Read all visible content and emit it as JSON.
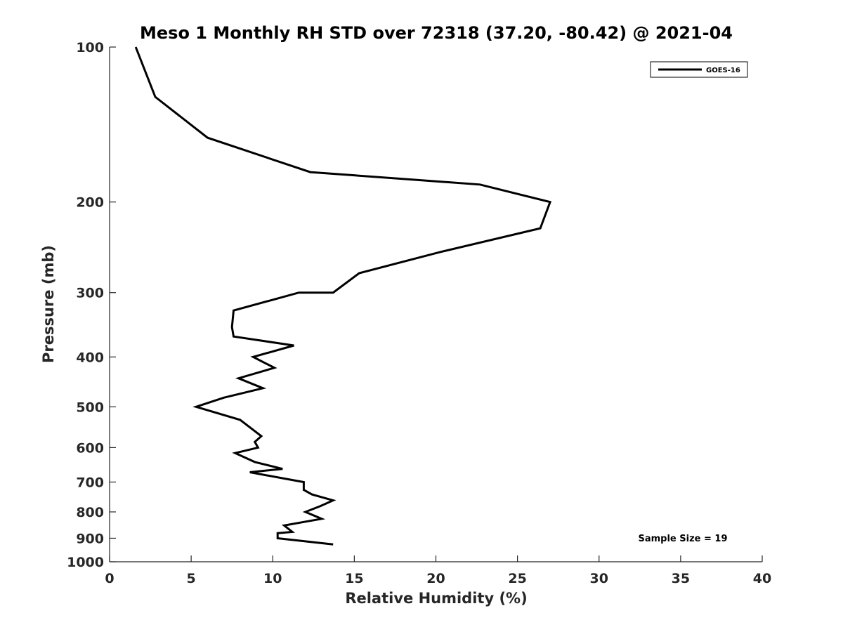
{
  "chart_data": {
    "type": "line",
    "title": "Meso 1 Monthly RH STD over 72318 (37.20, -80.42) @ 2021-04",
    "xlabel": "Relative Humidity (%)",
    "ylabel": "Pressure (mb)",
    "xlim": [
      0,
      40
    ],
    "ylim": [
      1000,
      100
    ],
    "y_scale": "log",
    "x_ticks": [
      0,
      5,
      10,
      15,
      20,
      25,
      30,
      35,
      40
    ],
    "y_ticks": [
      100,
      200,
      300,
      400,
      500,
      600,
      700,
      800,
      900,
      1000
    ],
    "grid": false,
    "legend_position": "top-right",
    "annotation": "Sample Size = 19",
    "series": [
      {
        "name": "GOES-16",
        "color": "#000000",
        "points": [
          [
            1.6,
            100
          ],
          [
            2.8,
            125
          ],
          [
            6.0,
            150
          ],
          [
            12.3,
            175
          ],
          [
            22.7,
            185
          ],
          [
            27.0,
            200
          ],
          [
            26.4,
            225
          ],
          [
            20.3,
            250
          ],
          [
            15.3,
            275
          ],
          [
            13.7,
            300
          ],
          [
            11.6,
            300
          ],
          [
            7.6,
            325
          ],
          [
            7.5,
            350
          ],
          [
            7.6,
            365
          ],
          [
            11.3,
            380
          ],
          [
            8.8,
            400
          ],
          [
            10.1,
            420
          ],
          [
            7.9,
            440
          ],
          [
            9.4,
            460
          ],
          [
            7.0,
            480
          ],
          [
            5.3,
            500
          ],
          [
            8.0,
            530
          ],
          [
            9.3,
            570
          ],
          [
            8.9,
            585
          ],
          [
            9.1,
            600
          ],
          [
            7.7,
            615
          ],
          [
            8.9,
            640
          ],
          [
            10.6,
            660
          ],
          [
            8.6,
            670
          ],
          [
            10.8,
            690
          ],
          [
            11.9,
            700
          ],
          [
            11.9,
            725
          ],
          [
            12.4,
            740
          ],
          [
            13.7,
            760
          ],
          [
            12.9,
            780
          ],
          [
            12.0,
            800
          ],
          [
            13.0,
            825
          ],
          [
            10.7,
            850
          ],
          [
            11.2,
            875
          ],
          [
            10.3,
            880
          ],
          [
            10.3,
            900
          ],
          [
            13.7,
            925
          ]
        ]
      }
    ]
  }
}
